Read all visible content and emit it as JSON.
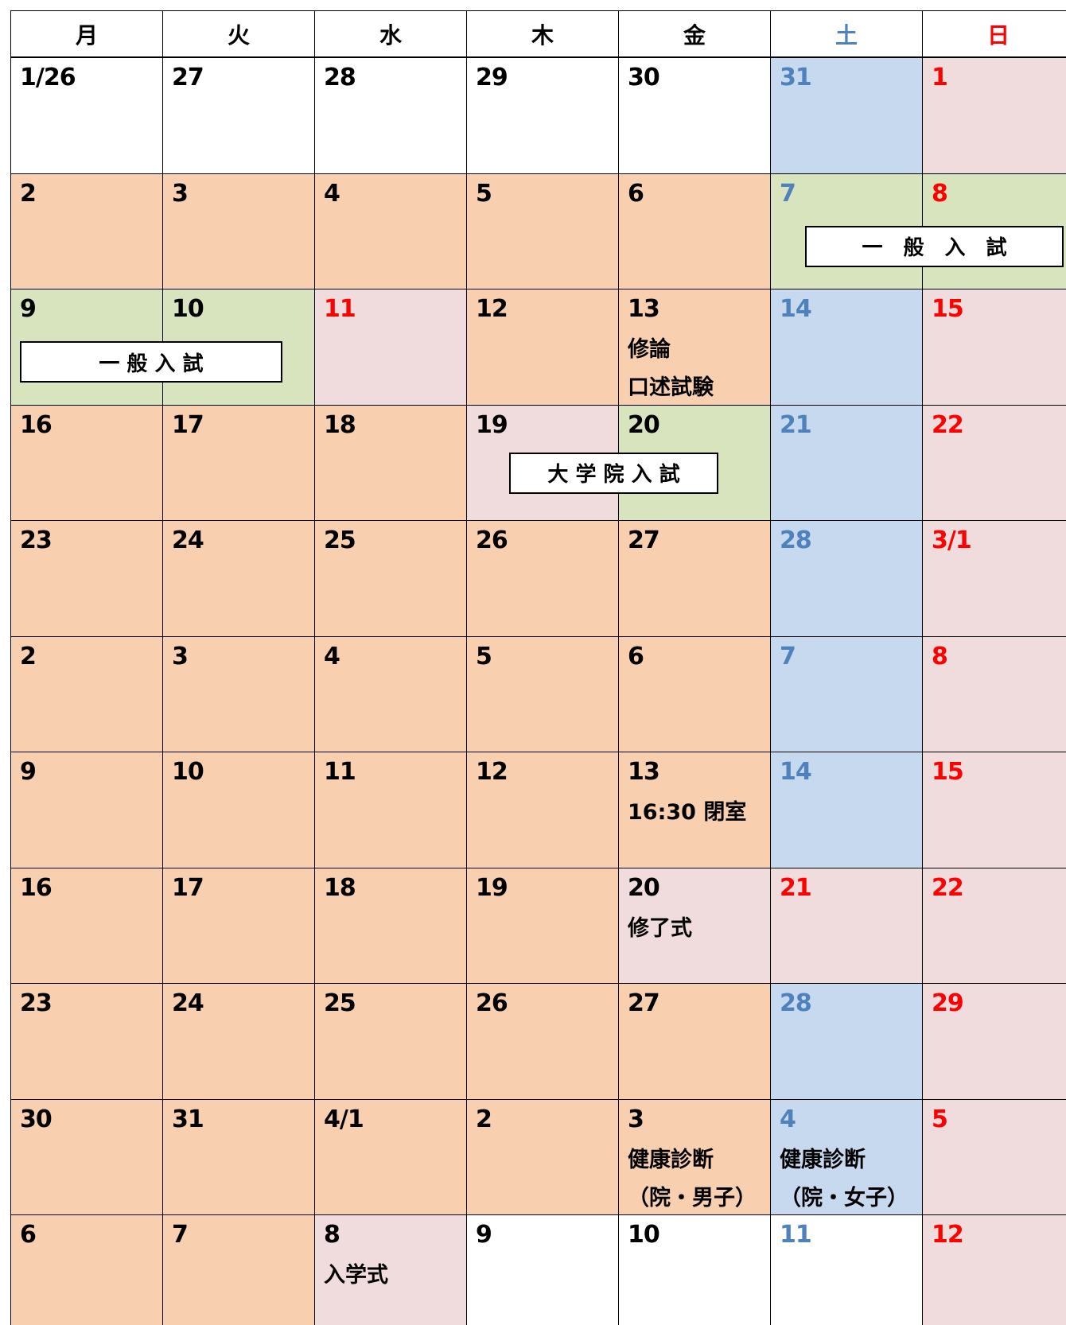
{
  "header": [
    "月",
    "火",
    "水",
    "木",
    "金",
    "土",
    "日"
  ],
  "header_colors": [
    "#000000",
    "#000000",
    "#000000",
    "#000000",
    "#000000",
    "#4f81bd",
    "#ff0000"
  ],
  "weeks": [
    {
      "cells": [
        {
          "date": "1/26",
          "fill": "#ffffff",
          "color": "#000000"
        },
        {
          "date": "27",
          "fill": "#ffffff",
          "color": "#000000"
        },
        {
          "date": "28",
          "fill": "#ffffff",
          "color": "#000000"
        },
        {
          "date": "29",
          "fill": "#ffffff",
          "color": "#000000"
        },
        {
          "date": "30",
          "fill": "#ffffff",
          "color": "#000000"
        },
        {
          "date": "31",
          "fill": "#c6d9ef",
          "color": "#4f81bd"
        },
        {
          "date": "1",
          "fill": "#f0dcdc",
          "color": "#ff0000"
        }
      ]
    },
    {
      "cells": [
        {
          "date": "2",
          "fill": "#f8d0b0",
          "color": "#000000"
        },
        {
          "date": "3",
          "fill": "#f8d0b0",
          "color": "#000000"
        },
        {
          "date": "4",
          "fill": "#f8d0b0",
          "color": "#000000"
        },
        {
          "date": "5",
          "fill": "#f8d0b0",
          "color": "#000000"
        },
        {
          "date": "6",
          "fill": "#f8d0b0",
          "color": "#000000"
        },
        {
          "date": "7",
          "fill": "#d7e4bd",
          "color": "#4f81bd"
        },
        {
          "date": "8",
          "fill": "#d7e4bd",
          "color": "#ff0000"
        }
      ],
      "banner": "一　般　入　試"
    },
    {
      "cells": [
        {
          "date": "9",
          "fill": "#d7e4bd",
          "color": "#000000"
        },
        {
          "date": "10",
          "fill": "#d7e4bd",
          "color": "#000000"
        },
        {
          "date": "11",
          "fill": "#f0dcdc",
          "color": "#ff0000"
        },
        {
          "date": "12",
          "fill": "#f8d0b0",
          "color": "#000000"
        },
        {
          "date": "13",
          "fill": "#f8d0b0",
          "color": "#000000",
          "notes": [
            "修論",
            "口述試験"
          ]
        },
        {
          "date": "14",
          "fill": "#c6d9ef",
          "color": "#4f81bd"
        },
        {
          "date": "15",
          "fill": "#f0dcdc",
          "color": "#ff0000"
        }
      ],
      "banner": "一 般 入 試"
    },
    {
      "cells": [
        {
          "date": "16",
          "fill": "#f8d0b0",
          "color": "#000000"
        },
        {
          "date": "17",
          "fill": "#f8d0b0",
          "color": "#000000"
        },
        {
          "date": "18",
          "fill": "#f8d0b0",
          "color": "#000000"
        },
        {
          "date": "19",
          "fill": "#f0dcdc",
          "color": "#000000"
        },
        {
          "date": "20",
          "fill": "#d7e4bd",
          "color": "#000000"
        },
        {
          "date": "21",
          "fill": "#c6d9ef",
          "color": "#4f81bd"
        },
        {
          "date": "22",
          "fill": "#f0dcdc",
          "color": "#ff0000"
        }
      ],
      "banner": "大 学 院 入 試"
    },
    {
      "cells": [
        {
          "date": "23",
          "fill": "#f8d0b0",
          "color": "#000000"
        },
        {
          "date": "24",
          "fill": "#f8d0b0",
          "color": "#000000"
        },
        {
          "date": "25",
          "fill": "#f8d0b0",
          "color": "#000000"
        },
        {
          "date": "26",
          "fill": "#f8d0b0",
          "color": "#000000"
        },
        {
          "date": "27",
          "fill": "#f8d0b0",
          "color": "#000000"
        },
        {
          "date": "28",
          "fill": "#c6d9ef",
          "color": "#4f81bd"
        },
        {
          "date": "3/1",
          "fill": "#f0dcdc",
          "color": "#ff0000"
        }
      ]
    },
    {
      "cells": [
        {
          "date": "2",
          "fill": "#f8d0b0",
          "color": "#000000"
        },
        {
          "date": "3",
          "fill": "#f8d0b0",
          "color": "#000000"
        },
        {
          "date": "4",
          "fill": "#f8d0b0",
          "color": "#000000"
        },
        {
          "date": "5",
          "fill": "#f8d0b0",
          "color": "#000000"
        },
        {
          "date": "6",
          "fill": "#f8d0b0",
          "color": "#000000"
        },
        {
          "date": "7",
          "fill": "#c6d9ef",
          "color": "#4f81bd"
        },
        {
          "date": "8",
          "fill": "#f0dcdc",
          "color": "#ff0000"
        }
      ]
    },
    {
      "cells": [
        {
          "date": "9",
          "fill": "#f8d0b0",
          "color": "#000000"
        },
        {
          "date": "10",
          "fill": "#f8d0b0",
          "color": "#000000"
        },
        {
          "date": "11",
          "fill": "#f8d0b0",
          "color": "#000000"
        },
        {
          "date": "12",
          "fill": "#f8d0b0",
          "color": "#000000"
        },
        {
          "date": "13",
          "fill": "#f8d0b0",
          "color": "#000000",
          "notes": [
            "16:30 閉室"
          ]
        },
        {
          "date": "14",
          "fill": "#c6d9ef",
          "color": "#4f81bd"
        },
        {
          "date": "15",
          "fill": "#f0dcdc",
          "color": "#ff0000"
        }
      ]
    },
    {
      "cells": [
        {
          "date": "16",
          "fill": "#f8d0b0",
          "color": "#000000"
        },
        {
          "date": "17",
          "fill": "#f8d0b0",
          "color": "#000000"
        },
        {
          "date": "18",
          "fill": "#f8d0b0",
          "color": "#000000"
        },
        {
          "date": "19",
          "fill": "#f8d0b0",
          "color": "#000000"
        },
        {
          "date": "20",
          "fill": "#f0dcdc",
          "color": "#000000",
          "notes": [
            "修了式"
          ]
        },
        {
          "date": "21",
          "fill": "#f0dcdc",
          "color": "#ff0000"
        },
        {
          "date": "22",
          "fill": "#f0dcdc",
          "color": "#ff0000"
        }
      ]
    },
    {
      "cells": [
        {
          "date": "23",
          "fill": "#f8d0b0",
          "color": "#000000"
        },
        {
          "date": "24",
          "fill": "#f8d0b0",
          "color": "#000000"
        },
        {
          "date": "25",
          "fill": "#f8d0b0",
          "color": "#000000"
        },
        {
          "date": "26",
          "fill": "#f8d0b0",
          "color": "#000000"
        },
        {
          "date": "27",
          "fill": "#f8d0b0",
          "color": "#000000"
        },
        {
          "date": "28",
          "fill": "#c6d9ef",
          "color": "#4f81bd"
        },
        {
          "date": "29",
          "fill": "#f0dcdc",
          "color": "#ff0000"
        }
      ]
    },
    {
      "cells": [
        {
          "date": "30",
          "fill": "#f8d0b0",
          "color": "#000000"
        },
        {
          "date": "31",
          "fill": "#f8d0b0",
          "color": "#000000"
        },
        {
          "date": "4/1",
          "fill": "#f8d0b0",
          "color": "#000000"
        },
        {
          "date": "2",
          "fill": "#f8d0b0",
          "color": "#000000"
        },
        {
          "date": "3",
          "fill": "#f8d0b0",
          "color": "#000000",
          "notes": [
            "健康診断",
            "（院・男子）"
          ]
        },
        {
          "date": "4",
          "fill": "#c6d9ef",
          "color": "#4f81bd",
          "notes": [
            "健康診断",
            "（院・女子）"
          ]
        },
        {
          "date": "5",
          "fill": "#f0dcdc",
          "color": "#ff0000"
        }
      ]
    },
    {
      "cells": [
        {
          "date": "6",
          "fill": "#f8d0b0",
          "color": "#000000"
        },
        {
          "date": "7",
          "fill": "#f8d0b0",
          "color": "#000000"
        },
        {
          "date": "8",
          "fill": "#f0dcdc",
          "color": "#000000",
          "notes": [
            "入学式"
          ]
        },
        {
          "date": "9",
          "fill": "#ffffff",
          "color": "#000000"
        },
        {
          "date": "10",
          "fill": "#ffffff",
          "color": "#000000"
        },
        {
          "date": "11",
          "fill": "#ffffff",
          "color": "#4f81bd"
        },
        {
          "date": "12",
          "fill": "#f0dcdc",
          "color": "#ff0000"
        }
      ]
    }
  ]
}
